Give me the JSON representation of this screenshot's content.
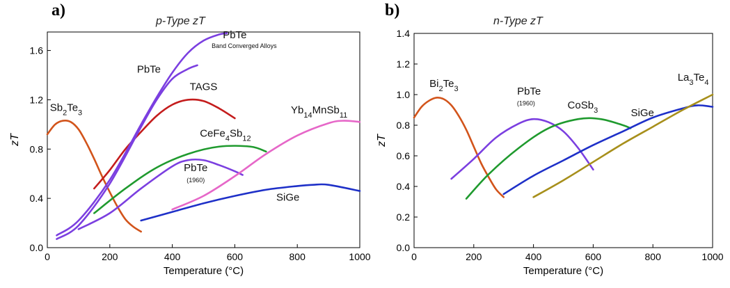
{
  "chart_data": [
    {
      "type": "line",
      "panel_label": "a)",
      "title": "p-Type  zT",
      "xlabel": "Temperature (°C)",
      "ylabel": "zT",
      "xlim": [
        0,
        1000
      ],
      "ylim": [
        0,
        1.75
      ],
      "xticks": [
        "0",
        "200",
        "400",
        "600",
        "800",
        "1000"
      ],
      "yticks": [
        "0.0",
        "0.4",
        "0.8",
        "1.2",
        "1.6"
      ],
      "grid": false,
      "series": [
        {
          "color": "#d2541b",
          "x": [
            0,
            25,
            50,
            75,
            100,
            125,
            150,
            175,
            200,
            225,
            250,
            275,
            300
          ],
          "y": [
            0.92,
            1.0,
            1.03,
            1.02,
            0.96,
            0.85,
            0.72,
            0.58,
            0.45,
            0.33,
            0.23,
            0.17,
            0.13
          ]
        },
        {
          "color": "#c41c1c",
          "x": [
            150,
            200,
            250,
            300,
            350,
            400,
            450,
            500,
            550,
            600
          ],
          "y": [
            0.48,
            0.63,
            0.8,
            0.94,
            1.07,
            1.16,
            1.2,
            1.19,
            1.13,
            1.05
          ]
        },
        {
          "color": "#7b3fe0",
          "x": [
            30,
            100,
            200,
            300,
            350,
            400,
            450,
            480
          ],
          "y": [
            0.07,
            0.18,
            0.52,
            0.98,
            1.2,
            1.37,
            1.45,
            1.48
          ]
        },
        {
          "color": "#7b3fe0",
          "x": [
            30,
            100,
            200,
            300,
            350,
            400,
            450,
            500,
            550,
            575
          ],
          "y": [
            0.1,
            0.22,
            0.55,
            1.0,
            1.22,
            1.42,
            1.58,
            1.68,
            1.73,
            1.74
          ]
        },
        {
          "color": "#7b3fe0",
          "x": [
            100,
            200,
            300,
            400,
            450,
            500,
            550,
            600,
            625
          ],
          "y": [
            0.15,
            0.28,
            0.48,
            0.66,
            0.71,
            0.71,
            0.67,
            0.62,
            0.59
          ]
        },
        {
          "color": "#1f9a2e",
          "x": [
            150,
            250,
            350,
            450,
            550,
            650,
            700
          ],
          "y": [
            0.28,
            0.48,
            0.65,
            0.76,
            0.82,
            0.82,
            0.78
          ]
        },
        {
          "color": "#e667c8",
          "x": [
            400,
            500,
            600,
            700,
            800,
            900,
            950,
            1000
          ],
          "y": [
            0.31,
            0.42,
            0.58,
            0.76,
            0.91,
            1.01,
            1.03,
            1.02
          ]
        },
        {
          "color": "#1e30c8",
          "x": [
            300,
            400,
            500,
            600,
            700,
            800,
            850,
            900,
            1000
          ],
          "y": [
            0.22,
            0.29,
            0.36,
            0.42,
            0.47,
            0.5,
            0.51,
            0.51,
            0.46
          ]
        }
      ],
      "annotations": [
        {
          "parts": [
            {
              "t": "Sb"
            },
            {
              "t": "2",
              "sub": true
            },
            {
              "t": "Te"
            },
            {
              "t": "3",
              "sub": true
            }
          ],
          "x": 60,
          "y": 1.11
        },
        {
          "parts": [
            {
              "t": "PbTe"
            }
          ],
          "x": 600,
          "y": 1.7
        },
        {
          "parts": [
            {
              "t": "Band Converged Alloys"
            }
          ],
          "x": 630,
          "y": 1.62,
          "small": true
        },
        {
          "parts": [
            {
              "t": "PbTe"
            }
          ],
          "x": 325,
          "y": 1.42
        },
        {
          "parts": [
            {
              "t": "TAGS"
            }
          ],
          "x": 500,
          "y": 1.28
        },
        {
          "parts": [
            {
              "t": "Yb"
            },
            {
              "t": "14",
              "sub": true
            },
            {
              "t": "MnSb"
            },
            {
              "t": "11",
              "sub": true
            }
          ],
          "x": 870,
          "y": 1.09
        },
        {
          "parts": [
            {
              "t": "CeFe"
            },
            {
              "t": "4",
              "sub": true
            },
            {
              "t": "Sb"
            },
            {
              "t": "12",
              "sub": true
            }
          ],
          "x": 570,
          "y": 0.9
        },
        {
          "parts": [
            {
              "t": "PbTe"
            }
          ],
          "x": 475,
          "y": 0.62
        },
        {
          "parts": [
            {
              "t": "(1960)"
            }
          ],
          "x": 475,
          "y": 0.53,
          "small": true
        },
        {
          "parts": [
            {
              "t": "SiGe"
            }
          ],
          "x": 770,
          "y": 0.38
        }
      ]
    },
    {
      "type": "line",
      "panel_label": "b)",
      "title": "n-Type zT",
      "xlabel": "Temperature (°C)",
      "ylabel": "zT",
      "xlim": [
        0,
        1000
      ],
      "ylim": [
        0,
        1.4
      ],
      "xticks": [
        "0",
        "200",
        "400",
        "600",
        "800",
        "1000"
      ],
      "yticks": [
        "0.0",
        "0.2",
        "0.4",
        "0.6",
        "0.8",
        "1.0",
        "1.2",
        "1.4"
      ],
      "grid": false,
      "series": [
        {
          "color": "#d2541b",
          "x": [
            0,
            25,
            50,
            75,
            100,
            125,
            150,
            175,
            200,
            225,
            250,
            275,
            300
          ],
          "y": [
            0.85,
            0.92,
            0.96,
            0.98,
            0.97,
            0.93,
            0.86,
            0.77,
            0.66,
            0.55,
            0.46,
            0.38,
            0.33
          ]
        },
        {
          "color": "#7b3fe0",
          "x": [
            125,
            200,
            275,
            350,
            400,
            450,
            500,
            550,
            600
          ],
          "y": [
            0.45,
            0.58,
            0.72,
            0.81,
            0.84,
            0.82,
            0.76,
            0.65,
            0.51
          ]
        },
        {
          "color": "#1f9a2e",
          "x": [
            175,
            250,
            350,
            450,
            550,
            625,
            700,
            725
          ],
          "y": [
            0.32,
            0.48,
            0.65,
            0.78,
            0.84,
            0.84,
            0.8,
            0.78
          ]
        },
        {
          "color": "#1e30c8",
          "x": [
            300,
            400,
            500,
            600,
            700,
            800,
            900,
            950,
            1000
          ],
          "y": [
            0.35,
            0.47,
            0.57,
            0.67,
            0.76,
            0.85,
            0.91,
            0.93,
            0.92
          ]
        },
        {
          "color": "#a78f1b",
          "x": [
            400,
            500,
            600,
            700,
            800,
            900,
            1000
          ],
          "y": [
            0.33,
            0.44,
            0.56,
            0.68,
            0.79,
            0.9,
            1.0
          ]
        }
      ],
      "annotations": [
        {
          "parts": [
            {
              "t": "Bi"
            },
            {
              "t": "2",
              "sub": true
            },
            {
              "t": "Te"
            },
            {
              "t": "3",
              "sub": true
            }
          ],
          "x": 100,
          "y": 1.05
        },
        {
          "parts": [
            {
              "t": "PbTe"
            }
          ],
          "x": 385,
          "y": 1.0
        },
        {
          "parts": [
            {
              "t": "(1960)"
            }
          ],
          "x": 375,
          "y": 0.93,
          "small": true
        },
        {
          "parts": [
            {
              "t": "CoSb"
            },
            {
              "t": "3",
              "sub": true
            }
          ],
          "x": 565,
          "y": 0.91
        },
        {
          "parts": [
            {
              "t": "SiGe"
            }
          ],
          "x": 765,
          "y": 0.86
        },
        {
          "parts": [
            {
              "t": "La"
            },
            {
              "t": "3",
              "sub": true
            },
            {
              "t": "Te"
            },
            {
              "t": "4",
              "sub": true
            }
          ],
          "x": 935,
          "y": 1.09
        }
      ]
    }
  ]
}
